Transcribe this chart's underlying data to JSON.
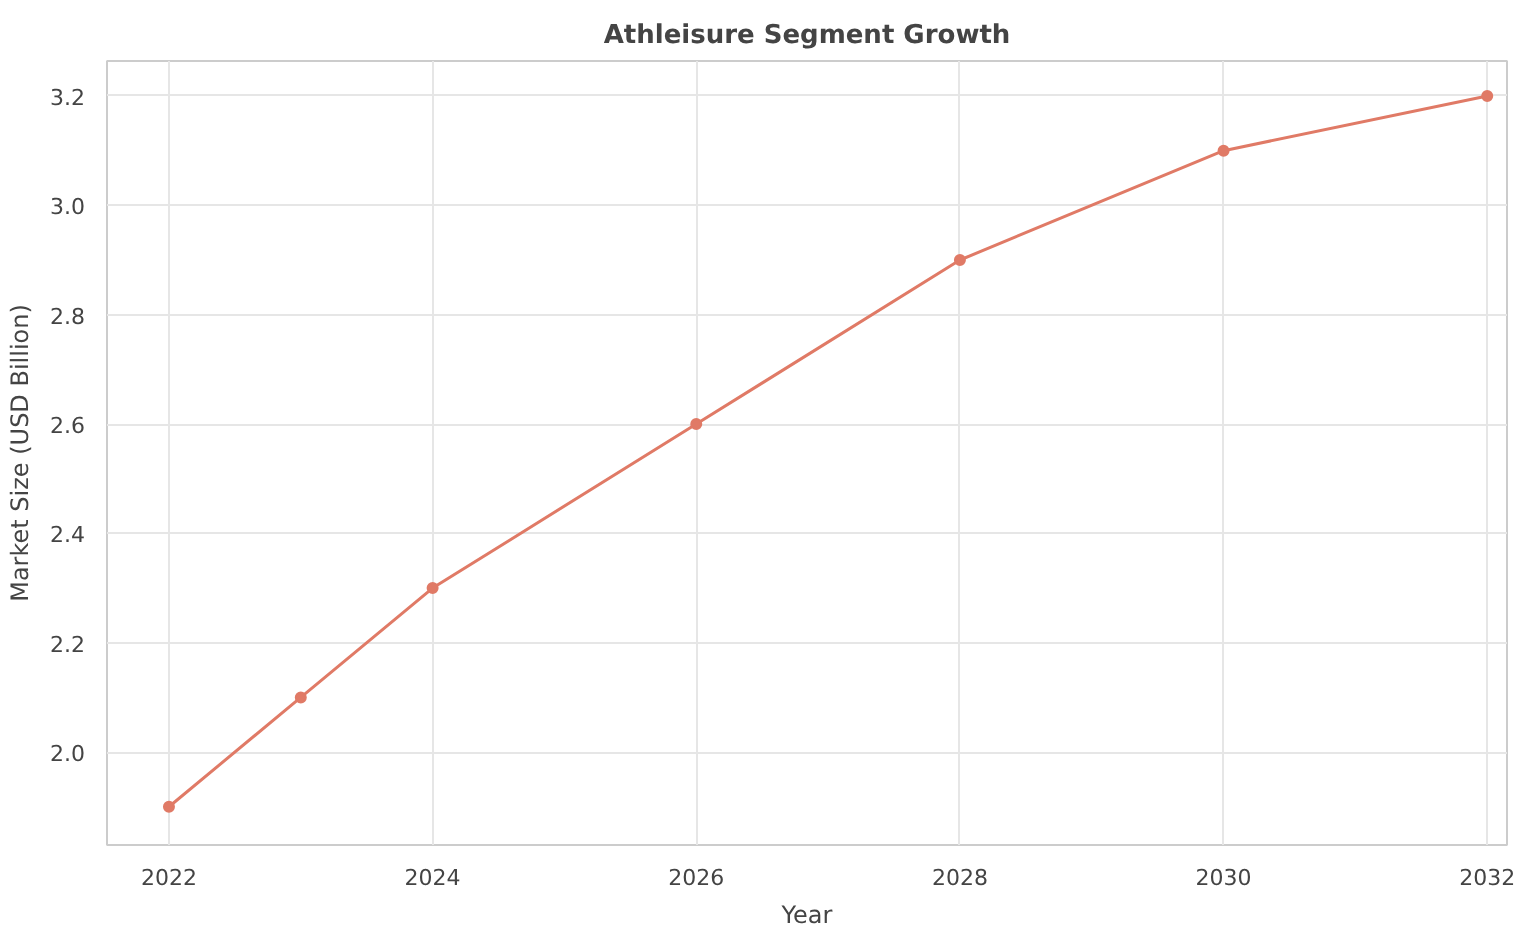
{
  "chart_data": {
    "type": "line",
    "title": "Athleisure Segment Growth",
    "xlabel": "Year",
    "ylabel": "Market Size (USD Billion)",
    "x": [
      2022,
      2023,
      2024,
      2026,
      2028,
      2030,
      2032
    ],
    "series": [
      {
        "color": "#e07a66",
        "values": [
          1.9,
          2.1,
          2.3,
          2.6,
          2.9,
          3.1,
          3.2
        ]
      }
    ],
    "xlim": [
      2021.53,
      2032.15
    ],
    "ylim": [
      1.83,
      3.264
    ],
    "xticks": [
      2022,
      2024,
      2026,
      2028,
      2030,
      2032
    ],
    "yticks": [
      {
        "value": 2.0,
        "label": "2.0"
      },
      {
        "value": 2.2,
        "label": "2.2"
      },
      {
        "value": 2.4,
        "label": "2.4"
      },
      {
        "value": 2.6,
        "label": "2.6"
      },
      {
        "value": 2.8,
        "label": "2.8"
      },
      {
        "value": 3.0,
        "label": "3.0"
      },
      {
        "value": 3.2,
        "label": "3.2"
      }
    ],
    "grid": true,
    "marker": "circle",
    "line_style": "solid"
  }
}
